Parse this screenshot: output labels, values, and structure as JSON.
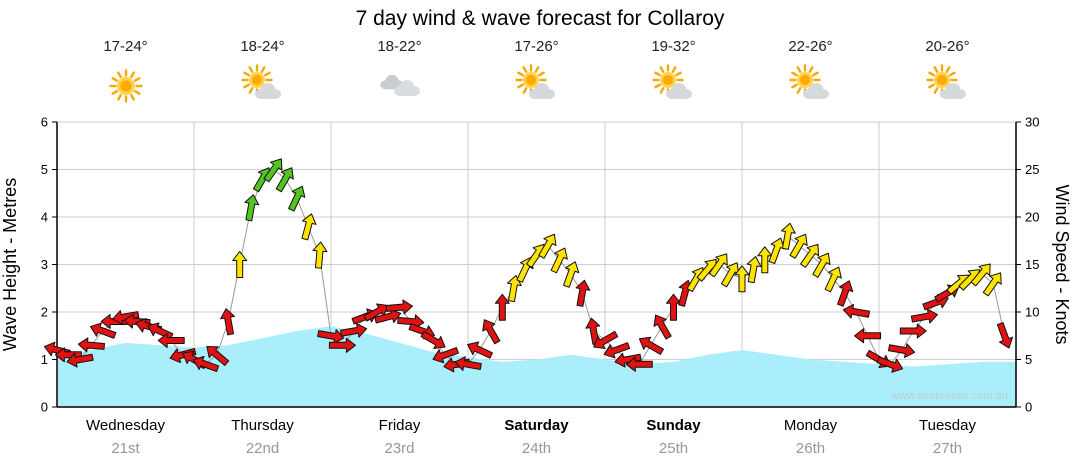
{
  "title": "7 day wind & wave forecast for Collaroy",
  "watermark": "www.seabreeze.com.au",
  "axes": {
    "left_label": "Wave Height - Metres",
    "right_label": "Wind Speed - Knots",
    "left_ticks": [
      0,
      1,
      2,
      3,
      4,
      5,
      6
    ],
    "right_ticks": [
      0,
      5,
      10,
      15,
      20,
      25,
      30
    ]
  },
  "days": [
    {
      "name": "Wednesday",
      "date": "21st",
      "temp": "17-24°",
      "icon": "sunny",
      "bold": false
    },
    {
      "name": "Thursday",
      "date": "22nd",
      "temp": "18-24°",
      "icon": "partly-cloudy",
      "bold": false
    },
    {
      "name": "Friday",
      "date": "23rd",
      "temp": "18-22°",
      "icon": "cloudy",
      "bold": false
    },
    {
      "name": "Saturday",
      "date": "24th",
      "temp": "17-26°",
      "icon": "partly-cloudy",
      "bold": true
    },
    {
      "name": "Sunday",
      "date": "25th",
      "temp": "19-32°",
      "icon": "partly-cloudy",
      "bold": true
    },
    {
      "name": "Monday",
      "date": "26th",
      "temp": "22-26°",
      "icon": "partly-cloudy",
      "bold": false
    },
    {
      "name": "Tuesday",
      "date": "27th",
      "temp": "20-26°",
      "icon": "partly-cloudy",
      "bold": false
    }
  ],
  "chart_data": {
    "type": "line",
    "title": "7 day wind & wave forecast for Collaroy",
    "x_axis": {
      "unit": "hours",
      "range_hours": [
        0,
        168
      ],
      "day_boundaries_every_hours": 24,
      "categories": [
        "Wednesday 21st",
        "Thursday 22nd",
        "Friday 23rd",
        "Saturday 24th",
        "Sunday 25th",
        "Monday 26th",
        "Tuesday 27th"
      ]
    },
    "ylim_wave": [
      0,
      6
    ],
    "ylim_wind": [
      0,
      30
    ],
    "grid": true,
    "legend": "none",
    "wave_height_m": {
      "series_name": "Wave Height - Metres",
      "interval_hours": 6,
      "values": [
        1.05,
        1.2,
        1.35,
        1.3,
        1.25,
        1.3,
        1.45,
        1.6,
        1.7,
        1.55,
        1.35,
        1.15,
        1.05,
        0.95,
        1.0,
        1.1,
        1.0,
        0.9,
        0.95,
        1.1,
        1.2,
        1.1,
        1.0,
        0.95,
        0.9,
        0.85,
        0.9,
        0.95,
        0.95
      ]
    },
    "wind": {
      "series_name": "Wind Speed - Knots",
      "interval_hours": 2,
      "point_format": [
        "speed_knots",
        "arrow_rotation_deg_0_is_up"
      ],
      "points": [
        [
          6,
          285
        ],
        [
          5.5,
          270
        ],
        [
          5,
          260
        ],
        [
          6.5,
          275
        ],
        [
          8,
          290
        ],
        [
          9,
          270
        ],
        [
          9.5,
          260
        ],
        [
          9,
          275
        ],
        [
          8.5,
          285
        ],
        [
          8,
          295
        ],
        [
          7,
          270
        ],
        [
          5.5,
          255
        ],
        [
          5,
          300
        ],
        [
          4.5,
          290
        ],
        [
          5.5,
          310
        ],
        [
          9,
          350
        ],
        [
          15,
          0
        ],
        [
          21,
          10
        ],
        [
          24,
          30
        ],
        [
          25,
          35
        ],
        [
          24,
          30
        ],
        [
          22,
          25
        ],
        [
          19,
          15
        ],
        [
          16,
          5
        ],
        [
          7.5,
          100
        ],
        [
          6.5,
          90
        ],
        [
          8,
          80
        ],
        [
          9.5,
          70
        ],
        [
          10,
          60
        ],
        [
          9.5,
          75
        ],
        [
          10.5,
          85
        ],
        [
          9,
          95
        ],
        [
          8,
          110
        ],
        [
          7,
          120
        ],
        [
          5.5,
          250
        ],
        [
          4.5,
          260
        ],
        [
          4.5,
          280
        ],
        [
          6,
          295
        ],
        [
          8,
          330
        ],
        [
          10.5,
          0
        ],
        [
          12.5,
          10
        ],
        [
          14.5,
          25
        ],
        [
          16,
          35
        ],
        [
          17,
          30
        ],
        [
          15.5,
          25
        ],
        [
          14,
          20
        ],
        [
          12,
          10
        ],
        [
          8,
          350
        ],
        [
          7,
          240
        ],
        [
          6,
          250
        ],
        [
          5,
          260
        ],
        [
          4.5,
          270
        ],
        [
          6.5,
          300
        ],
        [
          8.5,
          330
        ],
        [
          10.5,
          0
        ],
        [
          12,
          15
        ],
        [
          13.5,
          30
        ],
        [
          14.5,
          40
        ],
        [
          15,
          35
        ],
        [
          14,
          30
        ],
        [
          13.5,
          0
        ],
        [
          14.5,
          10
        ],
        [
          15.5,
          0
        ],
        [
          16.5,
          20
        ],
        [
          18,
          10
        ],
        [
          17,
          30
        ],
        [
          16,
          35
        ],
        [
          15,
          30
        ],
        [
          13.5,
          25
        ],
        [
          12,
          20
        ],
        [
          10,
          280
        ],
        [
          7.5,
          270
        ],
        [
          5,
          120
        ],
        [
          4.5,
          110
        ],
        [
          6,
          100
        ],
        [
          8,
          90
        ],
        [
          9.5,
          80
        ],
        [
          11,
          70
        ],
        [
          12,
          60
        ],
        [
          13,
          50
        ],
        [
          13.5,
          45
        ],
        [
          14,
          40
        ],
        [
          13,
          35
        ],
        [
          7.5,
          160
        ]
      ]
    },
    "color_rules": {
      "red_below_knots": 12.5,
      "yellow_below_knots": 20,
      "green_from_knots": 20
    },
    "colors": {
      "red": "#e11212",
      "yellow": "#ffe400",
      "green": "#52c41f",
      "wave_fill": "#aaeefb",
      "grid": "#cccccc",
      "line": "#999999",
      "axis": "#000000"
    }
  }
}
